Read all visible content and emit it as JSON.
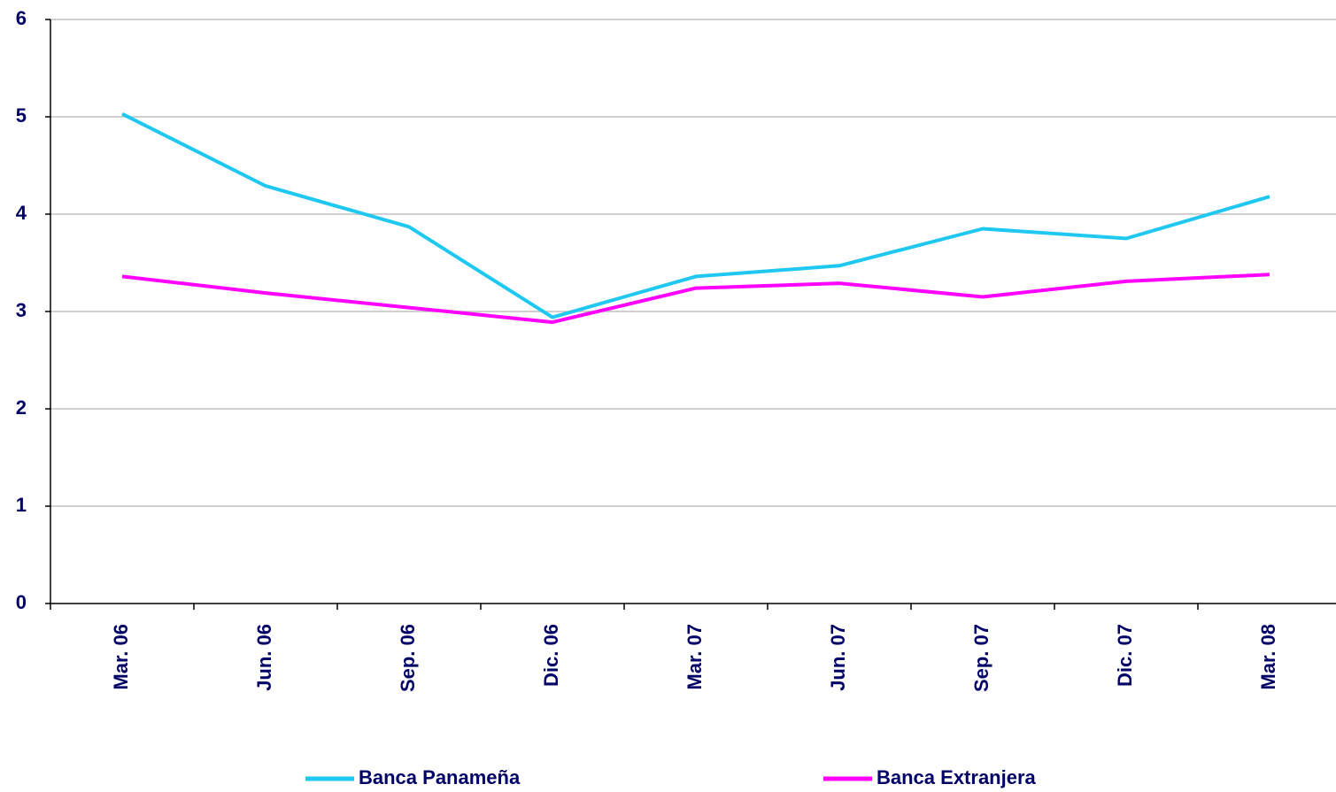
{
  "chart_data": {
    "type": "line",
    "categories": [
      "Mar. 06",
      "Jun. 06",
      "Sep. 06",
      "Dic. 06",
      "Mar. 07",
      "Jun. 07",
      "Sep. 07",
      "Dic. 07",
      "Mar. 08"
    ],
    "series": [
      {
        "name": "Banca Panameña",
        "color": "#1ec8f0",
        "values": [
          5.03,
          4.29,
          3.87,
          2.94,
          3.36,
          3.47,
          3.85,
          3.75,
          4.18
        ]
      },
      {
        "name": "Banca Extranjera",
        "color": "#ff00ff",
        "values": [
          3.36,
          3.19,
          3.04,
          2.89,
          3.24,
          3.29,
          3.15,
          3.31,
          3.38
        ]
      }
    ],
    "ylim": [
      0,
      6
    ],
    "yticks": [
      0,
      1,
      2,
      3,
      4,
      5,
      6
    ],
    "grid": true
  }
}
